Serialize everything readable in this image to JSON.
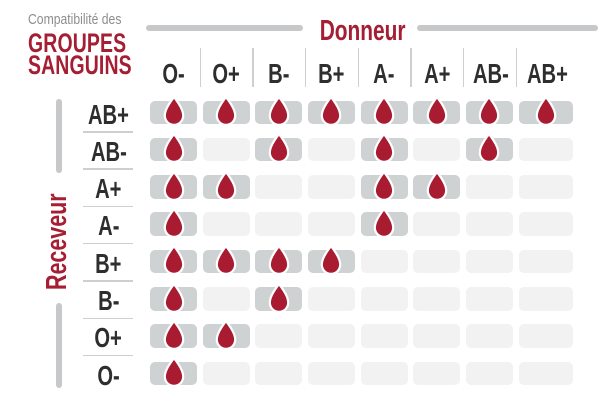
{
  "title": {
    "line1": "Compatibilité des",
    "line2": "GROUPES",
    "line3": "SANGUINS"
  },
  "axes": {
    "donor_label": "Donneur",
    "recipient_label": "Receveur"
  },
  "chart_data": {
    "type": "table",
    "title": "Compatibilité des GROUPES SANGUINS",
    "columns_axis_label": "Donneur",
    "rows_axis_label": "Receveur",
    "columns": [
      "O-",
      "O+",
      "B-",
      "B+",
      "A-",
      "A+",
      "AB-",
      "AB+"
    ],
    "rows": [
      "AB+",
      "AB-",
      "A+",
      "A-",
      "B+",
      "B-",
      "O+",
      "O-"
    ],
    "matrix": [
      [
        1,
        1,
        1,
        1,
        1,
        1,
        1,
        1
      ],
      [
        1,
        0,
        1,
        0,
        1,
        0,
        1,
        0
      ],
      [
        1,
        1,
        0,
        0,
        1,
        1,
        0,
        0
      ],
      [
        1,
        0,
        0,
        0,
        1,
        0,
        0,
        0
      ],
      [
        1,
        1,
        1,
        1,
        0,
        0,
        0,
        0
      ],
      [
        1,
        0,
        1,
        0,
        0,
        0,
        0,
        0
      ],
      [
        1,
        1,
        0,
        0,
        0,
        0,
        0,
        0
      ],
      [
        1,
        0,
        0,
        0,
        0,
        0,
        0,
        0
      ]
    ],
    "cell_marker": "blood-drop-icon",
    "legend_position": "none",
    "grid": "rounded-cells"
  },
  "colors": {
    "accent_red": "#a51e33",
    "drop_red": "#a81b31",
    "filled_cell": "#ced2d3",
    "empty_cell": "#f2f2f3",
    "thick_line": "#c6c8c9",
    "thin_line": "#cfcfcf",
    "label_text": "#2e2e2e",
    "muted_text": "#8d8d8d",
    "background": "#ffffff"
  }
}
